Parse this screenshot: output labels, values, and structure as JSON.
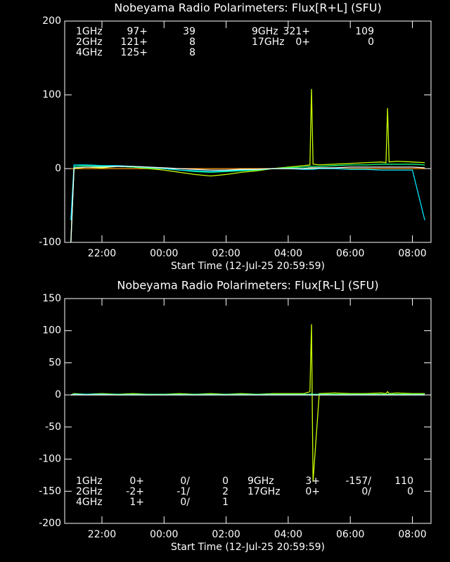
{
  "chart_data": [
    {
      "type": "line",
      "title": "Nobeyama Radio Polarimeters: Flux[R+L] (SFU)",
      "x_label": "Start Time (12-Jul-25 20:59:59)",
      "xlim": [
        20.8,
        32.6
      ],
      "ylim": [
        -100,
        200
      ],
      "xticks": [
        {
          "value": 22,
          "label": "22:00"
        },
        {
          "value": 24,
          "label": "00:00"
        },
        {
          "value": 26,
          "label": "02:00"
        },
        {
          "value": 28,
          "label": "04:00"
        },
        {
          "value": 30,
          "label": "06:00"
        },
        {
          "value": 32,
          "label": "08:00"
        }
      ],
      "yticks": [
        -100,
        0,
        100,
        200
      ],
      "x": [
        21.0,
        21.1,
        21.5,
        22,
        22.5,
        23,
        23.5,
        24,
        24.5,
        25,
        25.5,
        26,
        26.5,
        27,
        27.5,
        28,
        28.5,
        28.7,
        28.75,
        28.8,
        29,
        29.5,
        30,
        30.5,
        31,
        31.15,
        31.2,
        31.25,
        31.5,
        32,
        32.4
      ],
      "series": [
        {
          "name": "1GHz",
          "color": "#ffffff",
          "legend_values": [
            "97+",
            "39"
          ],
          "values": [
            -100,
            1,
            2,
            2,
            3,
            3,
            2,
            1,
            0,
            -1,
            -2,
            -2,
            -1,
            -1,
            0,
            0,
            0,
            1,
            1,
            1,
            1,
            1,
            2,
            2,
            2,
            2,
            2,
            2,
            2,
            2,
            1
          ]
        },
        {
          "name": "2GHz",
          "color": "#00e5ff",
          "legend_values": [
            "121+",
            "8"
          ],
          "values": [
            -70,
            5,
            5,
            4,
            4,
            3,
            2,
            0,
            -2,
            -3,
            -4,
            -3,
            -2,
            -1,
            0,
            0,
            -1,
            -1,
            -1,
            -1,
            0,
            0,
            -1,
            -1,
            -2,
            -2,
            -2,
            -2,
            -2,
            -2,
            -70
          ]
        },
        {
          "name": "4GHz",
          "color": "#00ff7f",
          "legend_values": [
            "125+",
            "8"
          ],
          "values": [
            -100,
            3,
            4,
            3,
            3,
            2,
            1,
            0,
            -2,
            -4,
            -5,
            -4,
            -3,
            -2,
            0,
            1,
            2,
            3,
            3,
            3,
            3,
            4,
            5,
            5,
            6,
            6,
            6,
            6,
            6,
            6,
            5
          ]
        },
        {
          "name": "9GHz",
          "color": "#c8ff00",
          "legend_values": [
            "321+",
            "109"
          ],
          "values": [
            -100,
            0,
            2,
            1,
            3,
            2,
            0,
            -2,
            -5,
            -8,
            -10,
            -8,
            -5,
            -3,
            0,
            2,
            4,
            5,
            108,
            6,
            5,
            6,
            7,
            8,
            9,
            8,
            82,
            9,
            10,
            9,
            8
          ]
        },
        {
          "name": "17GHz",
          "color": "#ff9900",
          "legend_values": [
            "0+",
            "0"
          ],
          "values": [
            0,
            0,
            0,
            0,
            0,
            0,
            0,
            0,
            0,
            0,
            0,
            0,
            0,
            0,
            0,
            0,
            0,
            0,
            0,
            0,
            0,
            0,
            0,
            0,
            0,
            0,
            0,
            0,
            0,
            0,
            0
          ]
        }
      ]
    },
    {
      "type": "line",
      "title": "Nobeyama Radio Polarimeters: Flux[R-L] (SFU)",
      "x_label": "Start Time (12-Jul-25 20:59:59)",
      "xlim": [
        20.8,
        32.6
      ],
      "ylim": [
        -200,
        150
      ],
      "xticks": [
        {
          "value": 22,
          "label": "22:00"
        },
        {
          "value": 24,
          "label": "00:00"
        },
        {
          "value": 26,
          "label": "02:00"
        },
        {
          "value": 28,
          "label": "04:00"
        },
        {
          "value": 30,
          "label": "06:00"
        },
        {
          "value": 32,
          "label": "08:00"
        }
      ],
      "yticks": [
        -200,
        -150,
        -100,
        -50,
        0,
        50,
        100,
        150
      ],
      "x": [
        21.0,
        21.1,
        21.5,
        22,
        22.5,
        23,
        23.5,
        24,
        24.5,
        25,
        25.5,
        26,
        26.5,
        27,
        27.5,
        28,
        28.5,
        28.7,
        28.75,
        28.8,
        29,
        29.5,
        30,
        30.5,
        31,
        31.15,
        31.2,
        31.25,
        31.5,
        32,
        32.4
      ],
      "series": [
        {
          "name": "1GHz",
          "color": "#ffffff",
          "legend_values": [
            "0+",
            "0/",
            "0"
          ],
          "values": [
            0,
            0,
            0,
            0,
            0,
            0,
            0,
            0,
            0,
            0,
            0,
            0,
            0,
            0,
            0,
            0,
            0,
            0,
            0,
            0,
            0,
            0,
            0,
            0,
            0,
            0,
            0,
            0,
            0,
            0,
            0
          ]
        },
        {
          "name": "2GHz",
          "color": "#00e5ff",
          "legend_values": [
            "-2+",
            "-1/",
            "2"
          ],
          "values": [
            0,
            1,
            1,
            1,
            0,
            0,
            0,
            0,
            0,
            0,
            0,
            0,
            0,
            0,
            0,
            0,
            0,
            0,
            0,
            0,
            0,
            0,
            0,
            0,
            0,
            0,
            0,
            0,
            0,
            0,
            0
          ]
        },
        {
          "name": "4GHz",
          "color": "#00ff7f",
          "legend_values": [
            "1+",
            "0/",
            "1"
          ],
          "values": [
            0,
            1,
            1,
            1,
            1,
            1,
            1,
            1,
            1,
            1,
            1,
            1,
            1,
            1,
            1,
            1,
            1,
            1,
            2,
            1,
            1,
            1,
            1,
            1,
            1,
            1,
            1,
            1,
            1,
            1,
            1
          ]
        },
        {
          "name": "9GHz",
          "color": "#c8ff00",
          "legend_values": [
            "3+",
            "-157/",
            "110"
          ],
          "values": [
            0,
            2,
            1,
            2,
            1,
            2,
            1,
            1,
            2,
            1,
            2,
            1,
            2,
            1,
            2,
            2,
            2,
            5,
            110,
            -135,
            2,
            3,
            2,
            2,
            3,
            2,
            5,
            2,
            3,
            2,
            2
          ]
        },
        {
          "name": "17GHz",
          "color": "#ff9900",
          "legend_values": [
            "0+",
            "0/",
            "0"
          ],
          "values": [
            0,
            0,
            0,
            0,
            0,
            0,
            0,
            0,
            0,
            0,
            0,
            0,
            0,
            0,
            0,
            0,
            0,
            0,
            0,
            0,
            0,
            0,
            0,
            0,
            0,
            0,
            0,
            0,
            0,
            0,
            0
          ]
        }
      ]
    }
  ]
}
